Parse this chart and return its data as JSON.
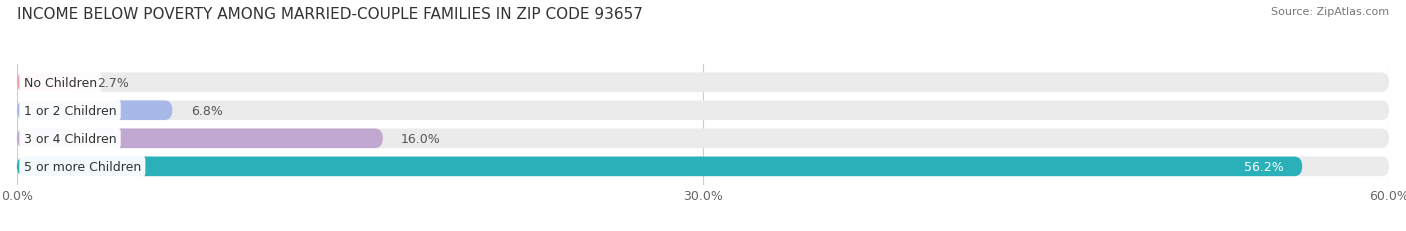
{
  "title": "INCOME BELOW POVERTY AMONG MARRIED-COUPLE FAMILIES IN ZIP CODE 93657",
  "source": "Source: ZipAtlas.com",
  "categories": [
    "No Children",
    "1 or 2 Children",
    "3 or 4 Children",
    "5 or more Children"
  ],
  "values": [
    2.7,
    6.8,
    16.0,
    56.2
  ],
  "bar_colors": [
    "#f0a0a8",
    "#a8b8e8",
    "#c0a8d0",
    "#2ab0b8"
  ],
  "bg_bar_color": "#ebebeb",
  "xlim": [
    0,
    60
  ],
  "xticks": [
    0.0,
    30.0,
    60.0
  ],
  "xtick_labels": [
    "0.0%",
    "30.0%",
    "60.0%"
  ],
  "title_fontsize": 11,
  "source_fontsize": 8,
  "tick_fontsize": 9,
  "bar_label_fontsize": 9,
  "category_fontsize": 9,
  "bar_height": 0.7,
  "background_color": "#ffffff"
}
